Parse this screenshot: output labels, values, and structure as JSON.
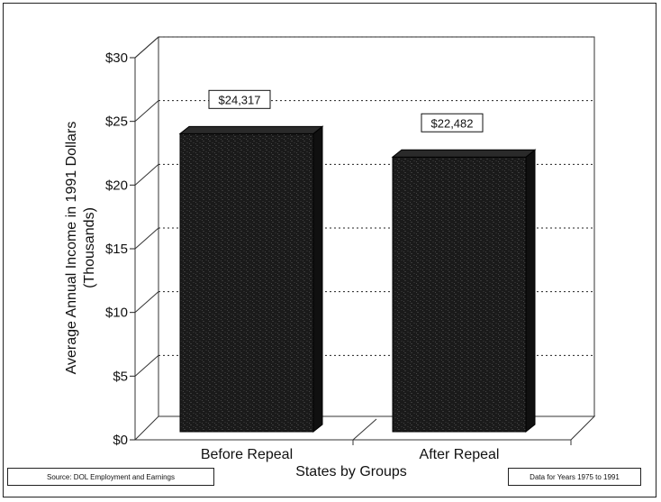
{
  "chart_data": {
    "type": "bar",
    "title": "",
    "categories": [
      "Before Repeal",
      "After Repeal"
    ],
    "values": [
      24317,
      22482
    ],
    "value_labels": [
      "$24,317",
      "$22,482"
    ],
    "xlabel": "States by Groups",
    "ylabel_line1": "Average Annual Income in 1991 Dollars",
    "ylabel_line2": "(Thousands)",
    "y_ticks": [
      0,
      5,
      10,
      15,
      20,
      25,
      30
    ],
    "y_tick_labels": [
      "$0",
      "$5",
      "$10",
      "$15",
      "$20",
      "$25",
      "$30"
    ],
    "ylim": [
      0,
      30000
    ],
    "grid": true,
    "grid_style": "dotted",
    "bar_color": "#1a1a1a",
    "three_d": true
  },
  "footnotes": {
    "source": "Source: DOL Employment and Earnings",
    "data_years": "Data for Years 1975 to 1991"
  }
}
